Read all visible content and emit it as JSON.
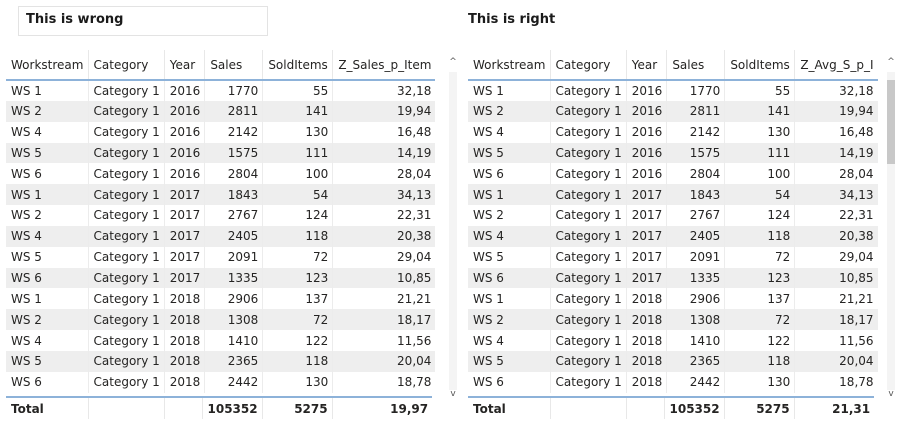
{
  "left": {
    "title": "This is wrong",
    "columns": [
      "Workstream",
      "Category",
      "Year",
      "Sales",
      "SoldItems",
      "Z_Sales_p_Item"
    ],
    "rows": [
      [
        "WS 1",
        "Category 1",
        "2016",
        "1770",
        "55",
        "32,18"
      ],
      [
        "WS 2",
        "Category 1",
        "2016",
        "2811",
        "141",
        "19,94"
      ],
      [
        "WS 4",
        "Category 1",
        "2016",
        "2142",
        "130",
        "16,48"
      ],
      [
        "WS 5",
        "Category 1",
        "2016",
        "1575",
        "111",
        "14,19"
      ],
      [
        "WS 6",
        "Category 1",
        "2016",
        "2804",
        "100",
        "28,04"
      ],
      [
        "WS 1",
        "Category 1",
        "2017",
        "1843",
        "54",
        "34,13"
      ],
      [
        "WS 2",
        "Category 1",
        "2017",
        "2767",
        "124",
        "22,31"
      ],
      [
        "WS 4",
        "Category 1",
        "2017",
        "2405",
        "118",
        "20,38"
      ],
      [
        "WS 5",
        "Category 1",
        "2017",
        "2091",
        "72",
        "29,04"
      ],
      [
        "WS 6",
        "Category 1",
        "2017",
        "1335",
        "123",
        "10,85"
      ],
      [
        "WS 1",
        "Category 1",
        "2018",
        "2906",
        "137",
        "21,21"
      ],
      [
        "WS 2",
        "Category 1",
        "2018",
        "1308",
        "72",
        "18,17"
      ],
      [
        "WS 4",
        "Category 1",
        "2018",
        "1410",
        "122",
        "11,56"
      ],
      [
        "WS 5",
        "Category 1",
        "2018",
        "2365",
        "118",
        "20,04"
      ],
      [
        "WS 6",
        "Category 1",
        "2018",
        "2442",
        "130",
        "18,78"
      ]
    ],
    "total": [
      "Total",
      "",
      "",
      "105352",
      "5275",
      "19,97"
    ]
  },
  "right": {
    "title": "This is right",
    "columns": [
      "Workstream",
      "Category",
      "Year",
      "Sales",
      "SoldItems",
      "Z_Avg_S_p_I"
    ],
    "rows": [
      [
        "WS 1",
        "Category 1",
        "2016",
        "1770",
        "55",
        "32,18"
      ],
      [
        "WS 2",
        "Category 1",
        "2016",
        "2811",
        "141",
        "19,94"
      ],
      [
        "WS 4",
        "Category 1",
        "2016",
        "2142",
        "130",
        "16,48"
      ],
      [
        "WS 5",
        "Category 1",
        "2016",
        "1575",
        "111",
        "14,19"
      ],
      [
        "WS 6",
        "Category 1",
        "2016",
        "2804",
        "100",
        "28,04"
      ],
      [
        "WS 1",
        "Category 1",
        "2017",
        "1843",
        "54",
        "34,13"
      ],
      [
        "WS 2",
        "Category 1",
        "2017",
        "2767",
        "124",
        "22,31"
      ],
      [
        "WS 4",
        "Category 1",
        "2017",
        "2405",
        "118",
        "20,38"
      ],
      [
        "WS 5",
        "Category 1",
        "2017",
        "2091",
        "72",
        "29,04"
      ],
      [
        "WS 6",
        "Category 1",
        "2017",
        "1335",
        "123",
        "10,85"
      ],
      [
        "WS 1",
        "Category 1",
        "2018",
        "2906",
        "137",
        "21,21"
      ],
      [
        "WS 2",
        "Category 1",
        "2018",
        "1308",
        "72",
        "18,17"
      ],
      [
        "WS 4",
        "Category 1",
        "2018",
        "1410",
        "122",
        "11,56"
      ],
      [
        "WS 5",
        "Category 1",
        "2018",
        "2365",
        "118",
        "20,04"
      ],
      [
        "WS 6",
        "Category 1",
        "2018",
        "2442",
        "130",
        "18,78"
      ]
    ],
    "total": [
      "Total",
      "",
      "",
      "105352",
      "5275",
      "21,31"
    ]
  },
  "scroll": {
    "up_glyph": "^",
    "down_glyph": "v"
  },
  "colors": {
    "header_rule": "#8db2d9",
    "alt_row": "#eeeeee"
  }
}
